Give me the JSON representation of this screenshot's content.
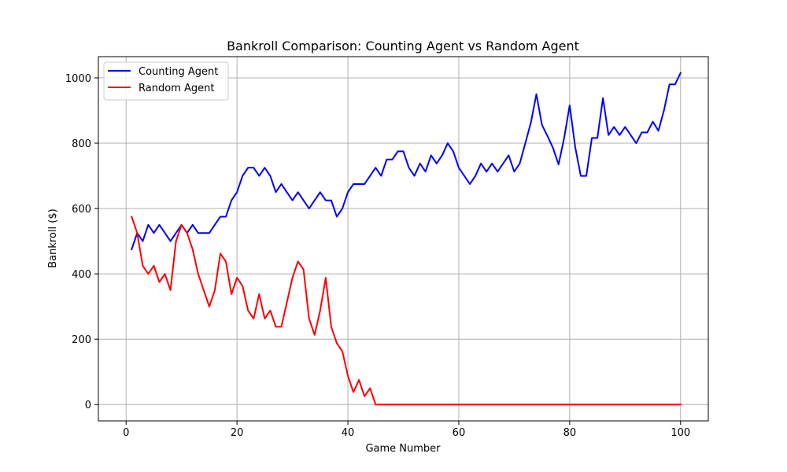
{
  "chart_data": {
    "type": "line",
    "title": "Bankroll Comparison: Counting Agent vs Random Agent",
    "xlabel": "Game Number",
    "ylabel": "Bankroll ($)",
    "xlim": [
      -5,
      105
    ],
    "ylim": [
      -50,
      1065
    ],
    "xticks": [
      0,
      20,
      40,
      60,
      80,
      100
    ],
    "yticks": [
      0,
      200,
      400,
      600,
      800,
      1000
    ],
    "grid": true,
    "legend_position": "top-left",
    "series": [
      {
        "name": "Counting Agent",
        "color": "#0000ff",
        "x": [
          1,
          2,
          3,
          4,
          5,
          6,
          7,
          8,
          9,
          10,
          11,
          12,
          13,
          14,
          15,
          16,
          17,
          18,
          19,
          20,
          21,
          22,
          23,
          24,
          25,
          26,
          27,
          28,
          29,
          30,
          31,
          32,
          33,
          34,
          35,
          36,
          37,
          38,
          39,
          40,
          41,
          42,
          43,
          44,
          45,
          46,
          47,
          48,
          49,
          50,
          51,
          52,
          53,
          54,
          55,
          56,
          57,
          58,
          59,
          60,
          61,
          62,
          63,
          64,
          65,
          66,
          67,
          68,
          69,
          70,
          71,
          72,
          73,
          74,
          75,
          76,
          77,
          78,
          79,
          80,
          81,
          82,
          83,
          84,
          85,
          86,
          87,
          88,
          89,
          90,
          91,
          92,
          93,
          94,
          95,
          96,
          97,
          98,
          99,
          100
        ],
        "values": [
          475,
          525,
          500,
          550,
          525,
          550,
          525,
          500,
          525,
          550,
          525,
          550,
          525,
          525,
          525,
          550,
          575,
          575,
          625,
          650,
          700,
          725,
          725,
          700,
          725,
          700,
          650,
          675,
          650,
          625,
          650,
          625,
          600,
          625,
          650,
          625,
          625,
          575,
          600,
          650,
          675,
          675,
          675,
          700,
          725,
          700,
          750,
          750,
          775,
          775,
          725,
          700,
          738,
          713,
          763,
          738,
          763,
          800,
          775,
          725,
          700,
          675,
          700,
          738,
          713,
          738,
          713,
          738,
          763,
          713,
          738,
          800,
          863,
          950,
          856,
          822,
          785,
          735,
          816,
          916,
          788,
          700,
          700,
          816,
          816,
          938,
          825,
          850,
          825,
          850,
          825,
          800,
          833,
          833,
          866,
          838,
          900,
          980,
          980,
          1015
        ]
      },
      {
        "name": "Random Agent",
        "color": "#ff0000",
        "x": [
          1,
          2,
          3,
          4,
          5,
          6,
          7,
          8,
          9,
          10,
          11,
          12,
          13,
          14,
          15,
          16,
          17,
          18,
          19,
          20,
          21,
          22,
          23,
          24,
          25,
          26,
          27,
          28,
          29,
          30,
          31,
          32,
          33,
          34,
          35,
          36,
          37,
          38,
          39,
          40,
          41,
          42,
          43,
          44,
          45,
          46,
          47,
          48,
          49,
          50,
          51,
          52,
          53,
          54,
          55,
          56,
          57,
          58,
          59,
          60,
          61,
          62,
          63,
          64,
          65,
          66,
          67,
          68,
          69,
          70,
          71,
          72,
          73,
          74,
          75,
          76,
          77,
          78,
          79,
          80,
          81,
          82,
          83,
          84,
          85,
          86,
          87,
          88,
          89,
          90,
          91,
          92,
          93,
          94,
          95,
          96,
          97,
          98,
          99,
          100
        ],
        "values": [
          575,
          525,
          425,
          400,
          425,
          375,
          400,
          350,
          500,
          550,
          525,
          475,
          400,
          350,
          300,
          350,
          462,
          438,
          338,
          388,
          363,
          288,
          263,
          338,
          263,
          288,
          238,
          238,
          313,
          388,
          438,
          413,
          263,
          213,
          288,
          388,
          238,
          188,
          163,
          88,
          38,
          75,
          25,
          50,
          0,
          0,
          0,
          0,
          0,
          0,
          0,
          0,
          0,
          0,
          0,
          0,
          0,
          0,
          0,
          0,
          0,
          0,
          0,
          0,
          0,
          0,
          0,
          0,
          0,
          0,
          0,
          0,
          0,
          0,
          0,
          0,
          0,
          0,
          0,
          0,
          0,
          0,
          0,
          0,
          0,
          0,
          0,
          0,
          0,
          0,
          0,
          0,
          0,
          0,
          0,
          0,
          0,
          0,
          0,
          0
        ]
      }
    ]
  }
}
